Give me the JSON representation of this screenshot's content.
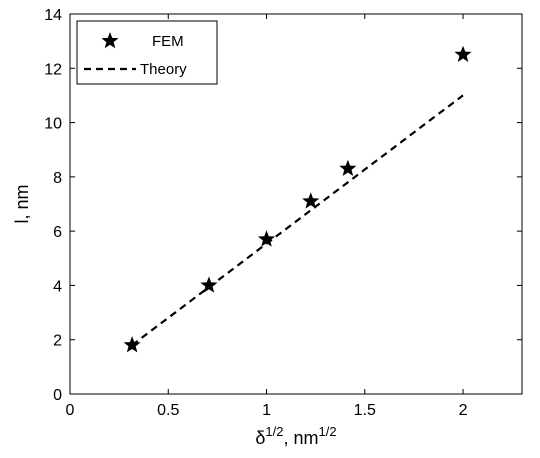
{
  "chart_data": {
    "type": "scatter",
    "xlabel": {
      "base": "δ",
      "base_sup": "1/2",
      "unit": ", nm",
      "unit_sup": "1/2"
    },
    "ylabel": "l, nm",
    "xlim": [
      0,
      2.3
    ],
    "ylim": [
      0,
      14
    ],
    "x_ticks": [
      0,
      0.5,
      1,
      1.5,
      2
    ],
    "x_tick_labels": [
      "0",
      "0.5",
      "1",
      "1.5",
      "2"
    ],
    "y_ticks": [
      0,
      2,
      4,
      6,
      8,
      10,
      12,
      14
    ],
    "y_tick_labels": [
      "0",
      "2",
      "4",
      "6",
      "8",
      "10",
      "12",
      "14"
    ],
    "grid": false,
    "legend_position": "top-left",
    "series": [
      {
        "name": "FEM",
        "marker": "star",
        "color": "#000000",
        "x": [
          0.316,
          0.707,
          1.0,
          1.225,
          1.414,
          2.0
        ],
        "y": [
          1.8,
          4.0,
          5.7,
          7.1,
          8.3,
          12.5
        ]
      },
      {
        "name": "Theory",
        "style": "dashed-line",
        "color": "#000000",
        "x": [
          0.316,
          2.0
        ],
        "y": [
          1.8,
          11.0
        ]
      }
    ]
  }
}
